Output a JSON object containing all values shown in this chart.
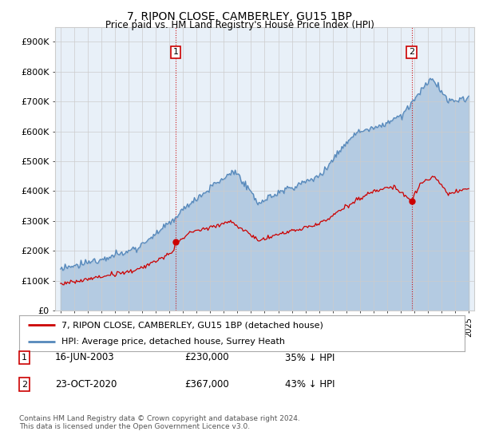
{
  "title": "7, RIPON CLOSE, CAMBERLEY, GU15 1BP",
  "subtitle": "Price paid vs. HM Land Registry's House Price Index (HPI)",
  "ylabel_ticks": [
    "£0",
    "£100K",
    "£200K",
    "£300K",
    "£400K",
    "£500K",
    "£600K",
    "£700K",
    "£800K",
    "£900K"
  ],
  "ytick_values": [
    0,
    100000,
    200000,
    300000,
    400000,
    500000,
    600000,
    700000,
    800000,
    900000
  ],
  "ylim": [
    0,
    950000
  ],
  "xlim_start": 1994.6,
  "xlim_end": 2025.4,
  "red_color": "#cc0000",
  "blue_color": "#5588bb",
  "blue_fill": "#ddeeff",
  "point1_x": 2003.46,
  "point1_y": 230000,
  "point1_label": "1",
  "point2_x": 2020.81,
  "point2_y": 367000,
  "point2_label": "2",
  "legend_label_red": "7, RIPON CLOSE, CAMBERLEY, GU15 1BP (detached house)",
  "legend_label_blue": "HPI: Average price, detached house, Surrey Heath",
  "footnote": "Contains HM Land Registry data © Crown copyright and database right 2024.\nThis data is licensed under the Open Government Licence v3.0.",
  "background_color": "#ffffff",
  "grid_color": "#cccccc",
  "chart_bg": "#e8f0f8"
}
